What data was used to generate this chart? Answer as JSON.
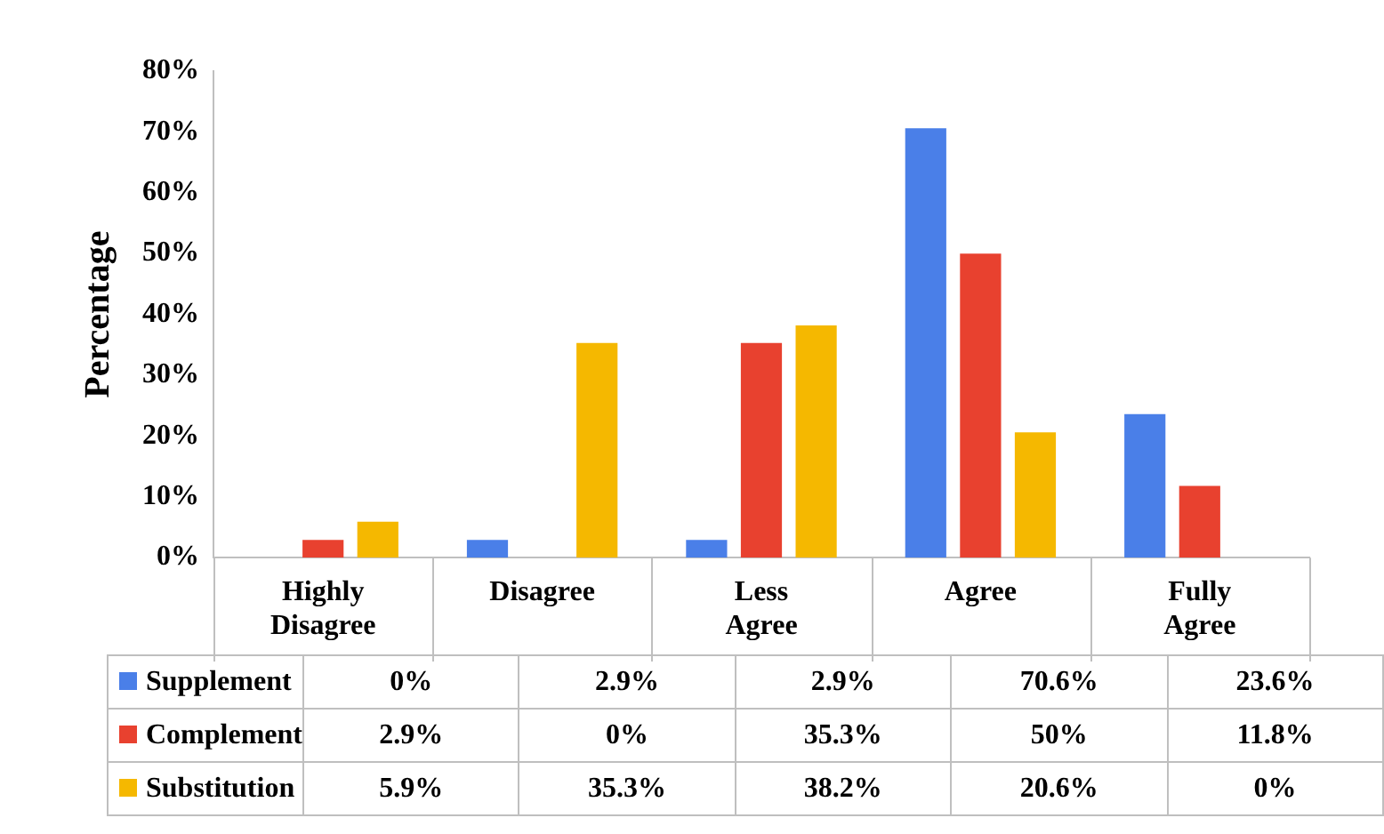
{
  "chart_data": {
    "type": "bar",
    "ylabel": "Percentage",
    "categories": [
      "Highly Disagree",
      "Disagree",
      "Less Agree",
      "Agree",
      "Fully Agree"
    ],
    "series": [
      {
        "name": "Supplement",
        "color": "#4a7fe8",
        "values": [
          0,
          2.9,
          2.9,
          70.6,
          23.6
        ],
        "value_labels": [
          "0%",
          "2.9%",
          "2.9%",
          "70.6%",
          "23.6%"
        ]
      },
      {
        "name": "Complement",
        "color": "#e8412f",
        "values": [
          2.9,
          0,
          35.3,
          50,
          11.8
        ],
        "value_labels": [
          "2.9%",
          "0%",
          "35.3%",
          "50%",
          "11.8%"
        ]
      },
      {
        "name": "Substitution",
        "color": "#f5b800",
        "values": [
          5.9,
          35.3,
          38.2,
          20.6,
          0
        ],
        "value_labels": [
          "5.9%",
          "35.3%",
          "38.2%",
          "20.6%",
          "0%"
        ]
      }
    ],
    "ylim": [
      0,
      80
    ],
    "yticks": [
      {
        "value": 0,
        "label": "0%"
      },
      {
        "value": 10,
        "label": "10%"
      },
      {
        "value": 20,
        "label": "20%"
      },
      {
        "value": 30,
        "label": "30%"
      },
      {
        "value": 40,
        "label": "40%"
      },
      {
        "value": 50,
        "label": "50%"
      },
      {
        "value": 60,
        "label": "60%"
      },
      {
        "value": 70,
        "label": "70%"
      },
      {
        "value": 80,
        "label": "80%"
      }
    ],
    "grid": false,
    "legend": "bottom"
  }
}
